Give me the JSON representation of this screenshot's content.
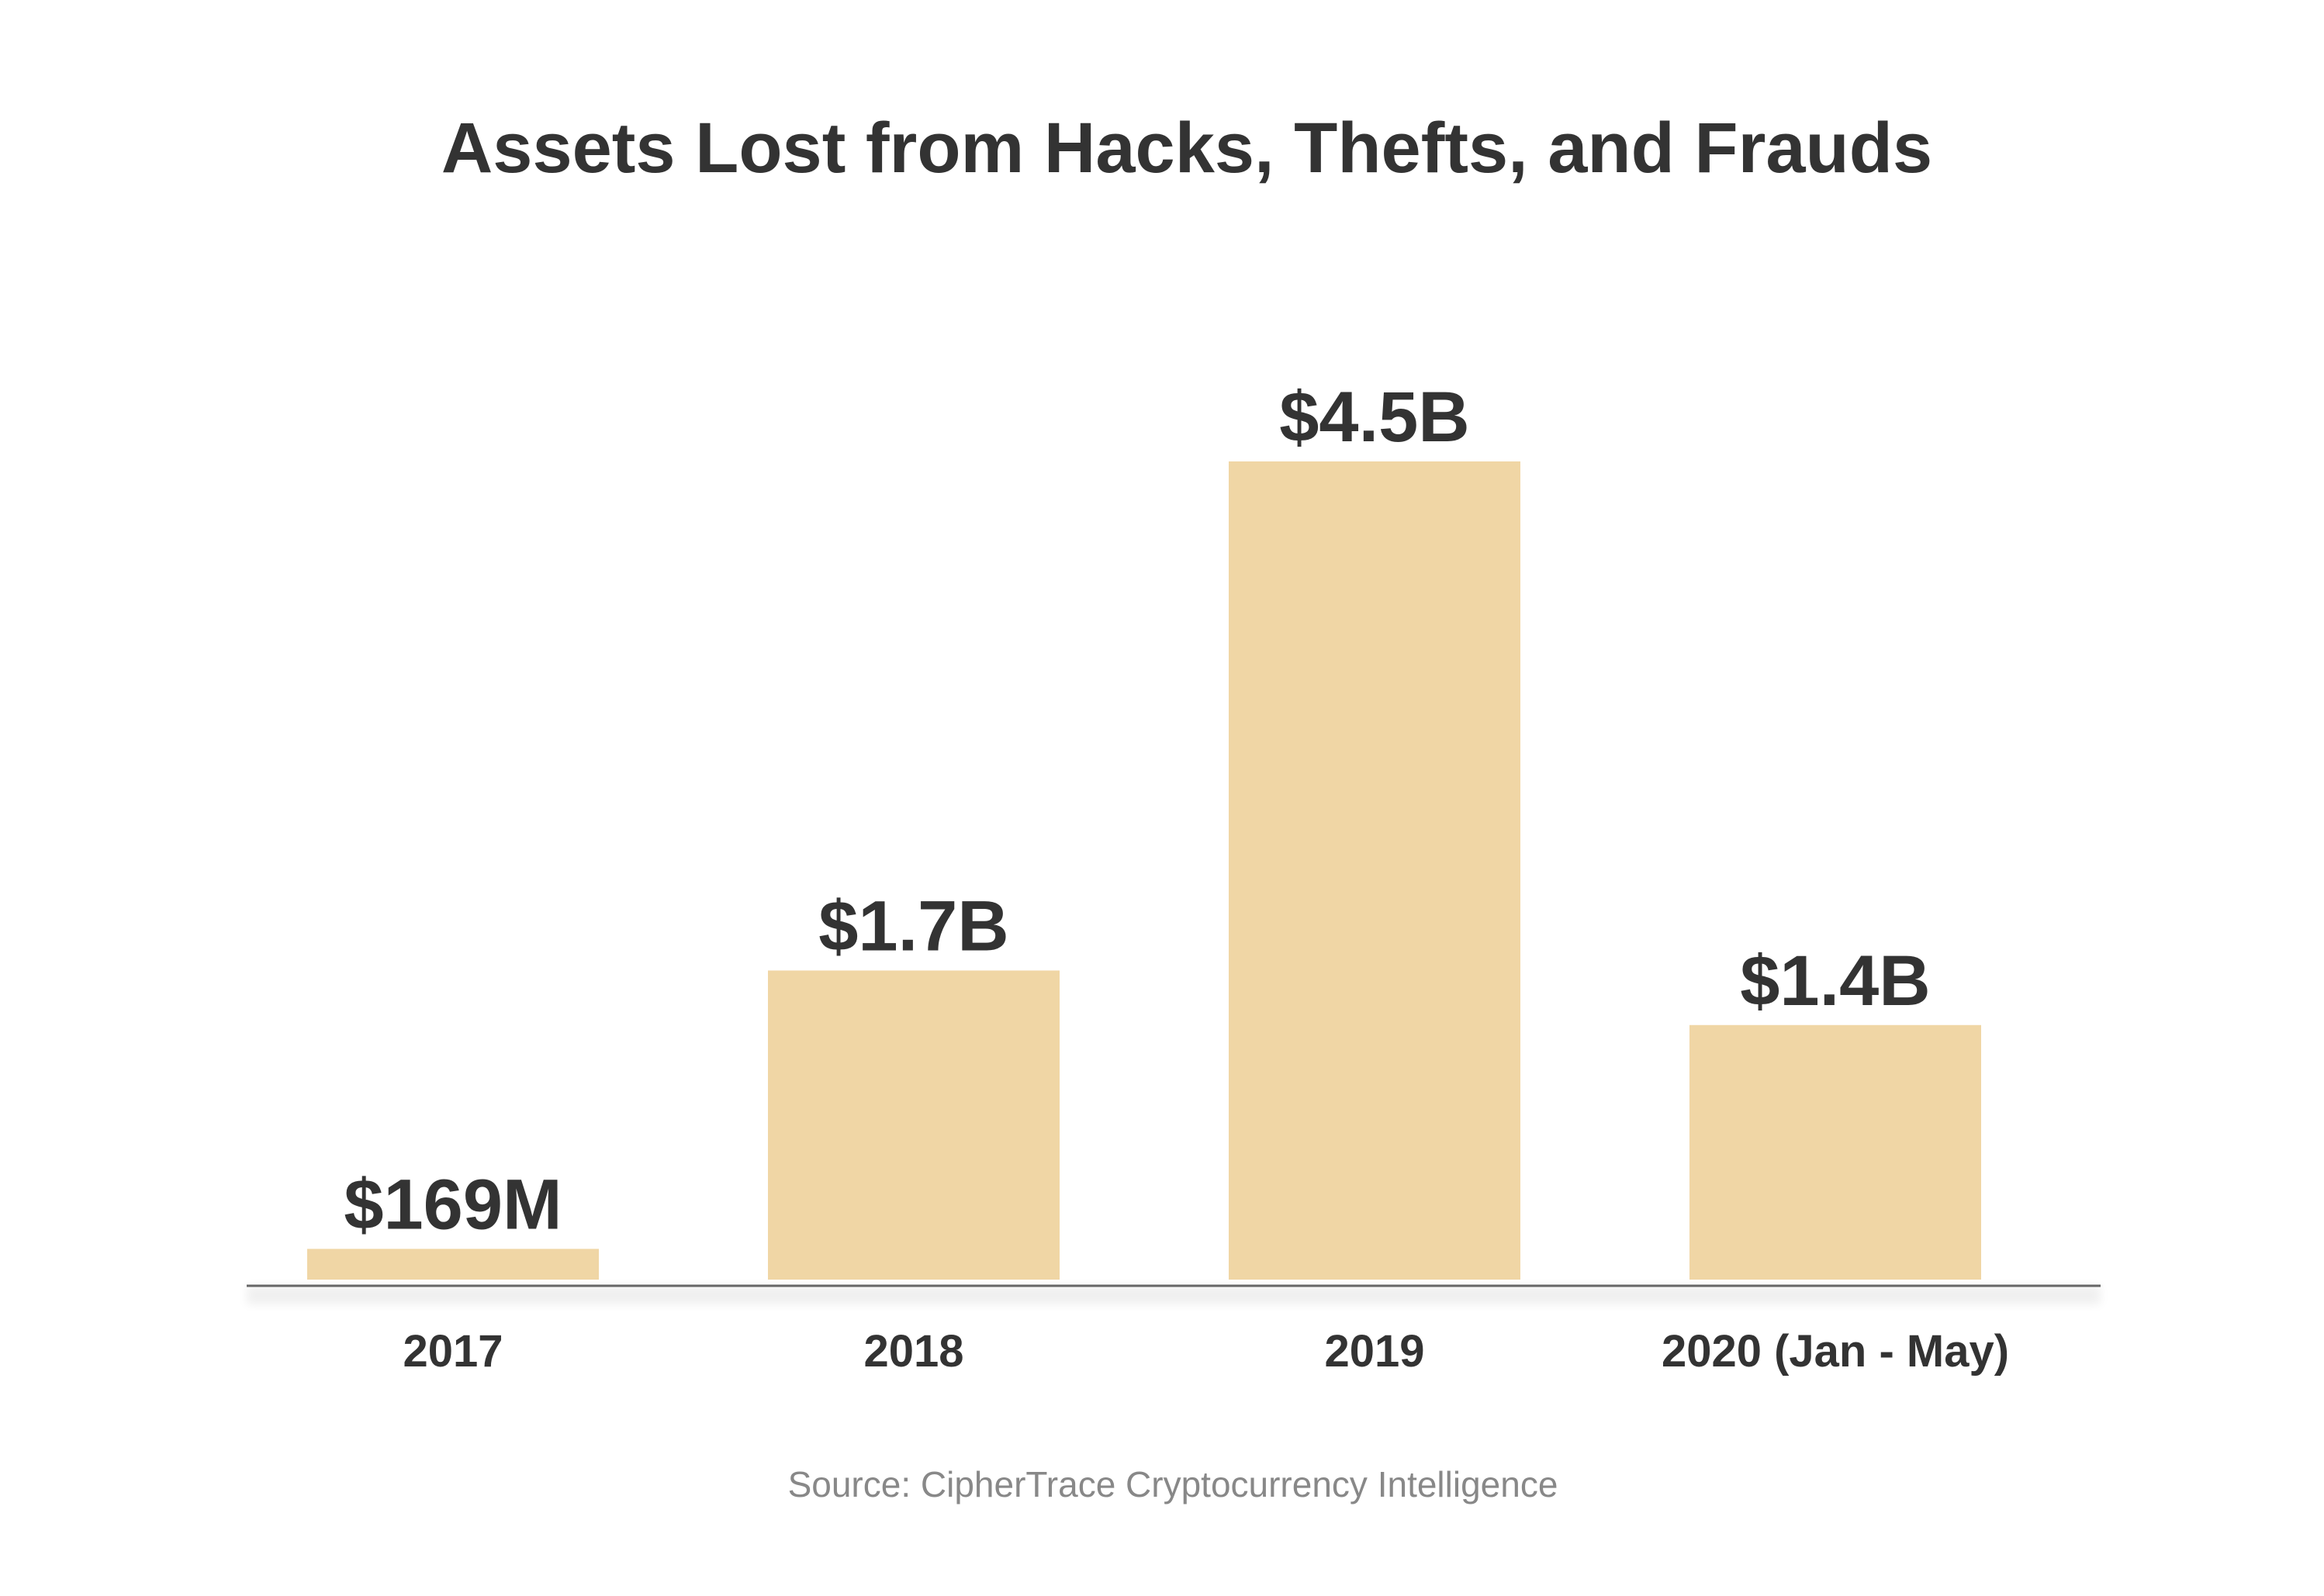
{
  "chart_data": {
    "type": "bar",
    "title": "Assets Lost from Hacks, Thefts, and Frauds",
    "categories": [
      "2017",
      "2018",
      "2019",
      "2020 (Jan - May)"
    ],
    "values": [
      0.169,
      1.7,
      4.5,
      1.4
    ],
    "value_labels": [
      "$169M",
      "$1.7B",
      "$4.5B",
      "$1.4B"
    ],
    "unit": "USD billions",
    "xlabel": "",
    "ylabel": "",
    "ylim": [
      0,
      4.5
    ],
    "grid": false,
    "legend": "none",
    "source": "Source: CipherTrace Cryptocurrency Intelligence"
  },
  "colors": {
    "bar": "#F0D6A5",
    "text": "#333333",
    "axis": "#666666",
    "source": "#888888",
    "background": "#FFFFFF"
  }
}
